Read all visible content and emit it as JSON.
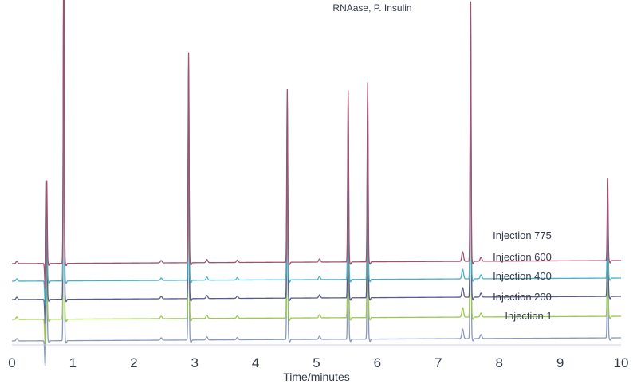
{
  "chart_data": {
    "type": "line",
    "title": "RNAase, P. Insulin",
    "xlabel": "Time/minutes",
    "ylabel": "",
    "xlim": [
      0,
      10
    ],
    "x_ticks": [
      "0",
      "1",
      "2",
      "3",
      "4",
      "5",
      "6",
      "7",
      "8",
      "9",
      "10"
    ],
    "grid": false,
    "series": [
      {
        "name": "Injection 775",
        "color": "#a05070",
        "baseline": 97,
        "drift": 4
      },
      {
        "name": "Injection 600",
        "color": "#4ab0c8",
        "baseline": 75,
        "drift": 4
      },
      {
        "name": "Injection 400",
        "color": "#585a90",
        "baseline": 52,
        "drift": 4
      },
      {
        "name": "Injection 200",
        "color": "#9ac850",
        "baseline": 27,
        "drift": 4
      },
      {
        "name": "Injection 1",
        "color": "#8a98c0",
        "baseline": 0,
        "drift": 4
      }
    ],
    "peaks": [
      {
        "time": 0.57,
        "height": 110
      },
      {
        "time": 0.85,
        "height": 420
      },
      {
        "time": 2.9,
        "height": 270
      },
      {
        "time": 4.52,
        "height": 222
      },
      {
        "time": 5.52,
        "height": 220
      },
      {
        "time": 5.84,
        "height": 230
      },
      {
        "time": 7.53,
        "height": 345
      },
      {
        "time": 9.78,
        "height": 105
      }
    ],
    "minor_peaks": [
      {
        "time": 0.08,
        "height": 3
      },
      {
        "time": 2.45,
        "height": 3
      },
      {
        "time": 3.2,
        "height": 4
      },
      {
        "time": 3.7,
        "height": 3
      },
      {
        "time": 5.05,
        "height": 4
      },
      {
        "time": 7.4,
        "height": 12
      },
      {
        "time": 7.7,
        "height": 5
      }
    ]
  }
}
